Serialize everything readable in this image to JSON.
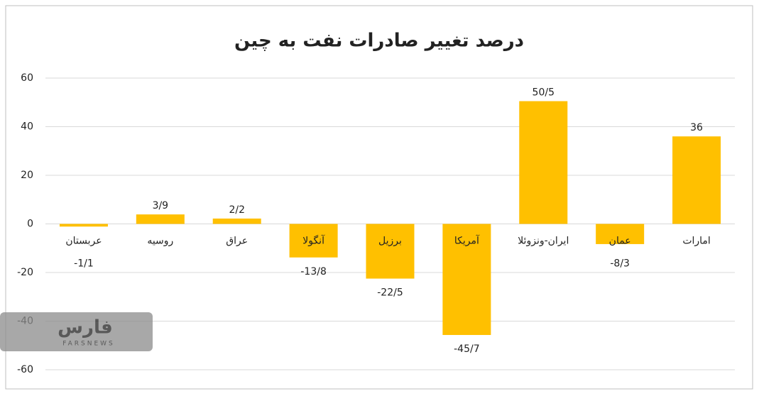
{
  "chart_data": {
    "type": "bar",
    "title": "درصد تغییر صادرات نفت به چین",
    "categories": [
      "عربستان",
      "روسیه",
      "عراق",
      "آنگولا",
      "برزیل",
      "آمریکا",
      "ایران-ونزوئلا",
      "عمان",
      "امارات"
    ],
    "values": [
      -1.1,
      3.9,
      2.2,
      -13.8,
      -22.5,
      -45.7,
      50.5,
      -8.3,
      36
    ],
    "value_labels": [
      "-1/1",
      "3/9",
      "2/2",
      "-13/8",
      "-22/5",
      "-45/7",
      "50/5",
      "-8/3",
      "36"
    ],
    "color": "#ffc000",
    "ylim": [
      -60,
      60
    ],
    "yticks": [
      -60,
      -40,
      -20,
      0,
      20,
      40,
      60
    ],
    "grid": true
  },
  "watermark": {
    "text": "فارس",
    "subtext": "FARSNEWS"
  }
}
